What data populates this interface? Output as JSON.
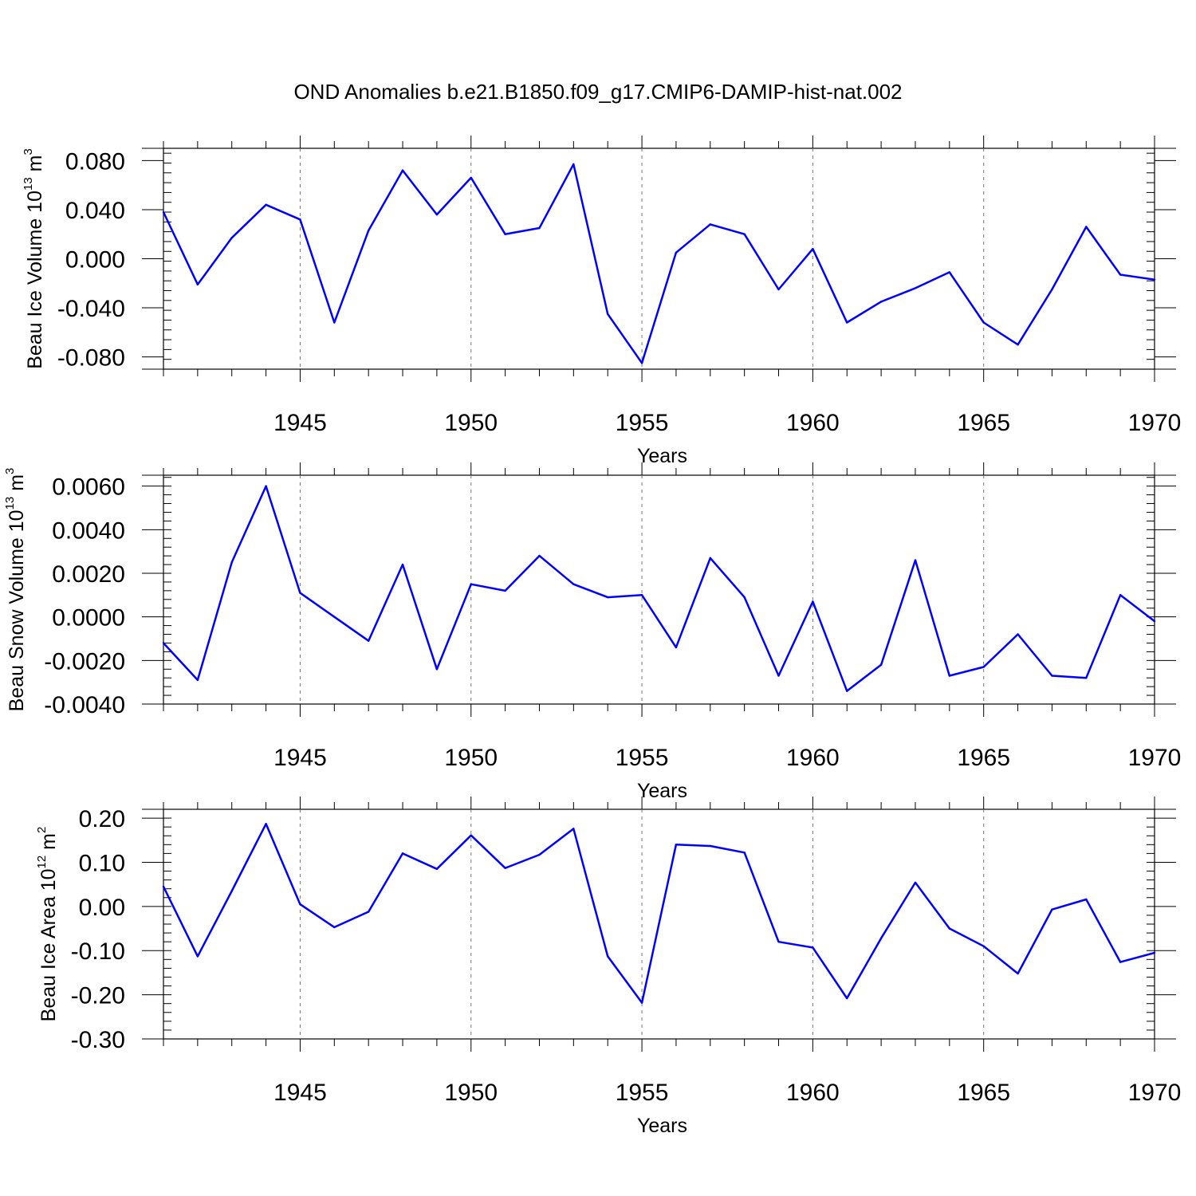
{
  "title": "OND Anomalies b.e21.B1850.f09_g17.CMIP6-DAMIP-hist-nat.002",
  "line_color": "#0000ff",
  "chart_data": [
    {
      "type": "line",
      "series_name": "",
      "ylabel_parts": [
        "Beau Ice Volume 10",
        "13",
        " m",
        "3"
      ],
      "xlabel": "Years",
      "xlim": [
        1941,
        1970
      ],
      "ylim": [
        -0.09,
        0.09
      ],
      "x_ticks": [
        1945,
        1950,
        1955,
        1960,
        1965,
        1970
      ],
      "x_tick_labels": [
        "1945",
        "1950",
        "1955",
        "1960",
        "1965",
        "1970"
      ],
      "y_ticks": [
        0.08,
        0.04,
        0.0,
        -0.04,
        -0.08
      ],
      "y_tick_labels": [
        "0.080",
        "0.040",
        "0.000",
        "-0.040",
        "-0.080"
      ],
      "grid": "vertical dashed at major x ticks",
      "x": [
        1941,
        1942,
        1943,
        1944,
        1945,
        1946,
        1947,
        1948,
        1949,
        1950,
        1951,
        1952,
        1953,
        1954,
        1955,
        1956,
        1957,
        1958,
        1959,
        1960,
        1961,
        1962,
        1963,
        1964,
        1965,
        1966,
        1967,
        1968,
        1969,
        1970
      ],
      "values": [
        0.038,
        -0.021,
        0.017,
        0.044,
        0.032,
        -0.052,
        0.023,
        0.072,
        0.036,
        0.066,
        0.02,
        0.025,
        0.077,
        -0.045,
        -0.085,
        0.005,
        0.028,
        0.02,
        -0.025,
        0.008,
        -0.052,
        -0.035,
        -0.024,
        -0.011,
        -0.052,
        -0.07,
        -0.025,
        0.026,
        -0.013,
        -0.017
      ]
    },
    {
      "type": "line",
      "series_name": "",
      "ylabel_parts": [
        "Beau Snow Volume 10",
        "13",
        " m",
        "3"
      ],
      "xlabel": "Years",
      "xlim": [
        1941,
        1970
      ],
      "ylim": [
        -0.004,
        0.0065
      ],
      "x_ticks": [
        1945,
        1950,
        1955,
        1960,
        1965,
        1970
      ],
      "x_tick_labels": [
        "1945",
        "1950",
        "1955",
        "1960",
        "1965",
        "1970"
      ],
      "y_ticks": [
        0.006,
        0.004,
        0.002,
        0.0,
        -0.002,
        -0.004
      ],
      "y_tick_labels": [
        "0.0060",
        "0.0040",
        "0.0020",
        "0.0000",
        "-0.0020",
        "-0.0040"
      ],
      "grid": "vertical dashed at major x ticks",
      "x": [
        1941,
        1942,
        1943,
        1944,
        1945,
        1946,
        1947,
        1948,
        1949,
        1950,
        1951,
        1952,
        1953,
        1954,
        1955,
        1956,
        1957,
        1958,
        1959,
        1960,
        1961,
        1962,
        1963,
        1964,
        1965,
        1966,
        1967,
        1968,
        1969,
        1970
      ],
      "values": [
        -0.0012,
        -0.0029,
        0.0025,
        0.006,
        0.0011,
        0.0,
        -0.0011,
        0.0024,
        -0.0024,
        0.0015,
        0.0012,
        0.0028,
        0.0015,
        0.0009,
        0.001,
        -0.0014,
        0.0027,
        0.0009,
        -0.0027,
        0.0007,
        -0.0034,
        -0.0022,
        0.0026,
        -0.0027,
        -0.0023,
        -0.0008,
        -0.0027,
        -0.0028,
        0.001,
        -0.0002
      ]
    },
    {
      "type": "line",
      "series_name": "",
      "ylabel_parts": [
        "Beau Ice Area 10",
        "12",
        " m",
        "2"
      ],
      "xlabel": "Years",
      "xlim": [
        1941,
        1970
      ],
      "ylim": [
        -0.3,
        0.22
      ],
      "x_ticks": [
        1945,
        1950,
        1955,
        1960,
        1965,
        1970
      ],
      "x_tick_labels": [
        "1945",
        "1950",
        "1955",
        "1960",
        "1965",
        "1970"
      ],
      "y_ticks": [
        0.2,
        0.1,
        0.0,
        -0.1,
        -0.2,
        -0.3
      ],
      "y_tick_labels": [
        "0.20",
        "0.10",
        "0.00",
        "-0.10",
        "-0.20",
        "-0.30"
      ],
      "grid": "vertical dashed at major x ticks",
      "x": [
        1941,
        1942,
        1943,
        1944,
        1945,
        1946,
        1947,
        1948,
        1949,
        1950,
        1951,
        1952,
        1953,
        1954,
        1955,
        1956,
        1957,
        1958,
        1959,
        1960,
        1961,
        1962,
        1963,
        1964,
        1965,
        1966,
        1967,
        1968,
        1969,
        1970
      ],
      "values": [
        0.045,
        -0.113,
        0.035,
        0.187,
        0.005,
        -0.047,
        -0.012,
        0.12,
        0.085,
        0.161,
        0.087,
        0.117,
        0.176,
        -0.113,
        -0.218,
        0.14,
        0.137,
        0.122,
        -0.08,
        -0.093,
        -0.208,
        -0.072,
        0.054,
        -0.05,
        -0.09,
        -0.152,
        -0.007,
        0.016,
        -0.126,
        -0.105
      ]
    }
  ]
}
